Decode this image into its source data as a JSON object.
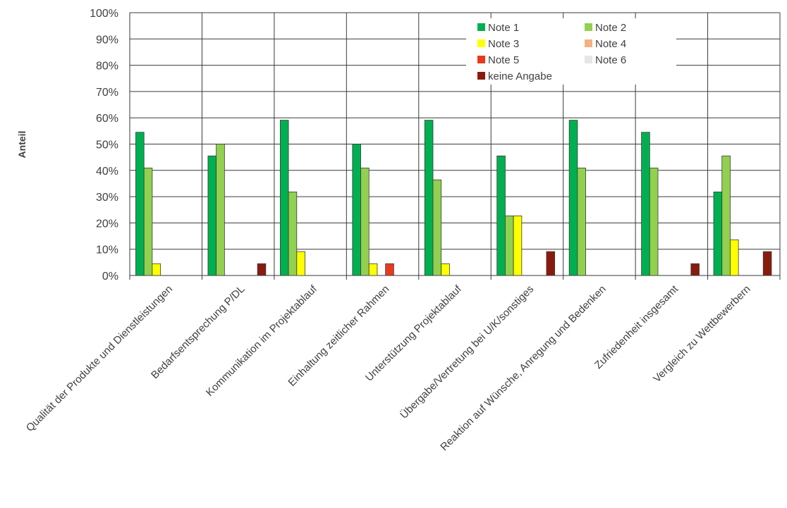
{
  "chart_data": {
    "type": "bar",
    "title": "",
    "xlabel": "",
    "ylabel": "Anteil",
    "ylim": [
      0,
      100
    ],
    "yticks": [
      "0%",
      "10%",
      "20%",
      "30%",
      "40%",
      "50%",
      "60%",
      "70%",
      "80%",
      "90%",
      "100%"
    ],
    "grid": true,
    "legend_position": "top-right",
    "categories": [
      "Qualität der Produkte und Dienstleistungen",
      "Bedarfsentsprechung P/DL",
      "Kommunikation im Projektablauf",
      "Einhaltung zeitlicher Rahmen",
      "Unterstützung Projektablauf",
      "Übergabe/Vertretung bei U/K/sonstiges",
      "Reaktion auf Wünsche, Anregung und Bedenken",
      "Zufriedenheit insgesamt",
      "Vergleich zu Wettbewerbern"
    ],
    "series": [
      {
        "name": "Note 1",
        "color": "#00B050",
        "values": [
          54.5,
          45.5,
          59.1,
          50.0,
          59.1,
          45.5,
          59.1,
          54.5,
          31.8
        ]
      },
      {
        "name": "Note 2",
        "color": "#92D050",
        "values": [
          40.9,
          50.0,
          31.8,
          40.9,
          36.4,
          22.7,
          40.9,
          40.9,
          45.5
        ]
      },
      {
        "name": "Note 3",
        "color": "#FFFF00",
        "values": [
          4.5,
          0,
          9.1,
          4.5,
          4.5,
          22.7,
          0,
          0,
          13.6
        ]
      },
      {
        "name": "Note 4",
        "color": "#F4B183",
        "values": [
          0,
          0,
          0,
          0,
          0,
          0,
          0,
          0,
          0
        ]
      },
      {
        "name": "Note 5",
        "color": "#E8391C",
        "values": [
          0,
          0,
          0,
          4.5,
          0,
          0,
          0,
          0,
          0
        ]
      },
      {
        "name": "Note 6",
        "color": "#E6E6E6",
        "values": [
          0,
          0,
          0,
          0,
          0,
          0,
          0,
          0,
          0
        ]
      },
      {
        "name": "keine Angabe",
        "color": "#8B1A0E",
        "values": [
          0,
          4.5,
          0,
          0,
          0,
          9.1,
          0,
          4.5,
          9.1
        ]
      }
    ]
  }
}
